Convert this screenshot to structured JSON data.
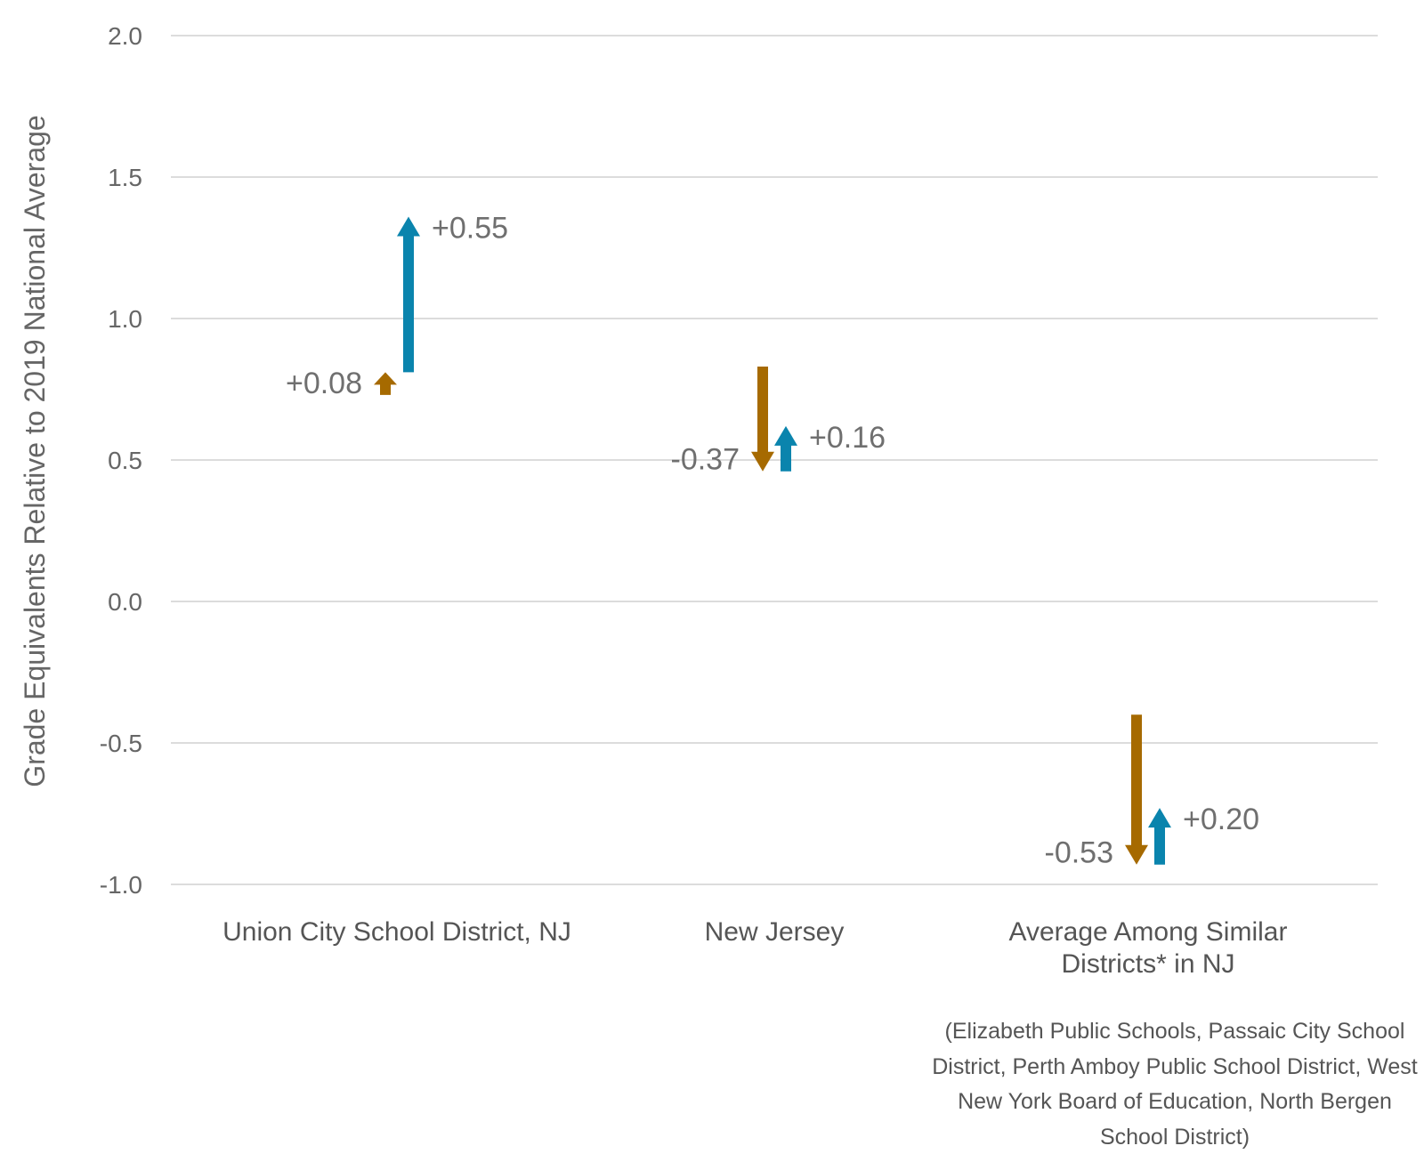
{
  "chart_data": {
    "type": "arrow",
    "title": "",
    "ylabel": "Grade Equivalents Relative to 2019 National Average",
    "ylim": [
      -1.0,
      2.0
    ],
    "yticks": [
      2.0,
      1.5,
      1.0,
      0.5,
      0.0,
      -0.5,
      -1.0
    ],
    "ytick_labels": [
      "2.0",
      "1.5",
      "1.0",
      "0.5",
      "0.0",
      "-0.5",
      "-1.0"
    ],
    "grid": true,
    "categories": [
      [
        "Union City School District, NJ"
      ],
      [
        "New Jersey"
      ],
      [
        "Average Among Similar",
        "Districts* in NJ"
      ]
    ],
    "series": [
      {
        "color": "#a66a00",
        "start": [
          0.73,
          0.83,
          -0.4
        ],
        "values": [
          0.08,
          -0.37,
          -0.53
        ],
        "labels": [
          "+0.08",
          "-0.37",
          "-0.53"
        ]
      },
      {
        "color": "#0a84ad",
        "start": [
          0.81,
          0.46,
          -0.93
        ],
        "values": [
          0.55,
          0.16,
          0.2
        ],
        "labels": [
          "+0.55",
          "+0.16",
          "+0.20"
        ]
      }
    ],
    "footnote": "(Elizabeth Public Schools, Passaic City School District, Perth Amboy Public School District, West New York Board of Education, North Bergen School District)"
  }
}
